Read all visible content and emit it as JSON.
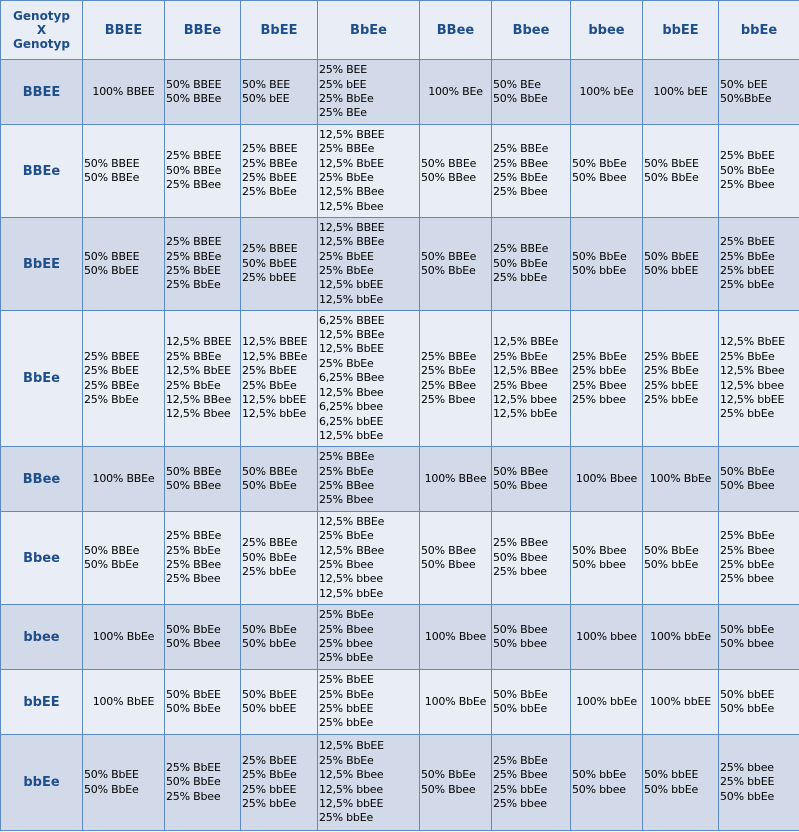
{
  "table": {
    "corner": [
      "Genotyp",
      "X",
      "Genotyp"
    ],
    "header": [
      "BBEE",
      "BBEe",
      "BbEE",
      "BbEe",
      "BBee",
      "Bbee",
      "bbee",
      "bbEE",
      "bbEe"
    ],
    "rows": [
      {
        "label": "BBEE",
        "cells": [
          [
            "100% BBEE"
          ],
          [
            "50% BBEE",
            "50% BBEe"
          ],
          [
            "50% BEE",
            "50% bEE"
          ],
          [
            "25% BEE",
            "25% bEE",
            "25% BbEe",
            "25% BEe"
          ],
          [
            "100% BEe"
          ],
          [
            "50% BEe",
            "50% BbEe"
          ],
          [
            "100% bEe"
          ],
          [
            "100% bEE"
          ],
          [
            "50% bEE",
            "50%BbEe"
          ]
        ]
      },
      {
        "label": "BBEe",
        "cells": [
          [
            "50% BBEE",
            "50% BBEe"
          ],
          [
            "25% BBEE",
            "50% BBEe",
            "25% BBee"
          ],
          [
            "25% BBEE",
            "25% BBEe",
            "25% BbEE",
            "25% BbEe"
          ],
          [
            "12,5% BBEE",
            "25% BBEe",
            "12,5% BbEE",
            "25% BbEe",
            "12,5% BBee",
            "12,5% Bbee"
          ],
          [
            "50% BBEe",
            "50% BBee"
          ],
          [
            "25% BBEe",
            "25% BBee",
            "25% BbEe",
            "25% Bbee"
          ],
          [
            "50% BbEe",
            "50% Bbee"
          ],
          [
            "50% BbEE",
            "50% BbEe"
          ],
          [
            "25% BbEE",
            "50% BbEe",
            "25% Bbee"
          ]
        ]
      },
      {
        "label": "BbEE",
        "cells": [
          [
            "50% BBEE",
            "50% BbEE"
          ],
          [
            "25% BBEE",
            "25% BBEe",
            "25% BbEE",
            "25% BbEe"
          ],
          [
            "25% BBEE",
            "50% BbEE",
            "25% bbEE"
          ],
          [
            "12,5% BBEE",
            "12,5% BBEe",
            "25% BbEE",
            "25% BbEe",
            "12,5% bbEE",
            "12,5% bbEe"
          ],
          [
            "50% BBEe",
            "50% BbEe"
          ],
          [
            "25% BBEe",
            "50% BbEe",
            "25% bbEe"
          ],
          [
            "50% BbEe",
            "50% bbEe"
          ],
          [
            "50% BbEE",
            "50% bbEE"
          ],
          [
            "25% BbEE",
            "25% BbEe",
            "25% bbEE",
            "25% bbEe"
          ]
        ]
      },
      {
        "label": "BbEe",
        "cells": [
          [
            "25% BBEE",
            "25% BbEE",
            "25% BBEe",
            "25% BbEe"
          ],
          [
            "12,5% BBEE",
            "25% BBEe",
            "12,5% BbEE",
            "25% BbEe",
            "12,5% BBee",
            "12,5% Bbee"
          ],
          [
            "12,5% BBEE",
            "12,5% BBEe",
            "25% BbEE",
            "25% BbEe",
            "12,5% bbEE",
            "12,5% bbEe"
          ],
          [
            "6,25% BBEE",
            "12,5% BBEe",
            "12,5% BbEE",
            "25% BbEe",
            "6,25% BBee",
            "12,5% Bbee",
            "6,25% bbee",
            "6,25% bbEE",
            "12,5% bbEe"
          ],
          [
            "25% BBEe",
            "25% BbEe",
            "25% BBee",
            "25% Bbee"
          ],
          [
            "12,5% BBEe",
            "25% BbEe",
            "12,5% BBee",
            "25% Bbee",
            "12,5% bbee",
            "12,5% bbEe"
          ],
          [
            "25% BbEe",
            "25% bbEe",
            "25% Bbee",
            "25% bbee"
          ],
          [
            "25% BbEE",
            "25% BbEe",
            "25% bbEE",
            "25% bbEe"
          ],
          [
            "12,5% BbEE",
            "25% BbEe",
            "12,5% Bbee",
            "12,5% bbee",
            "12,5% bbEE",
            "25% bbEe"
          ]
        ]
      },
      {
        "label": "BBee",
        "cells": [
          [
            "100% BBEe"
          ],
          [
            "50% BBEe",
            "50% BBee"
          ],
          [
            "50% BBEe",
            "50% BbEe"
          ],
          [
            "25% BBEe",
            "25% BbEe",
            "25% BBee",
            "25% Bbee"
          ],
          [
            "100% BBee"
          ],
          [
            "50% BBee",
            "50% Bbee"
          ],
          [
            "100% Bbee"
          ],
          [
            "100% BbEe"
          ],
          [
            "50% BbEe",
            "50% Bbee"
          ]
        ]
      },
      {
        "label": "Bbee",
        "cells": [
          [
            "50% BBEe",
            "50% BbEe"
          ],
          [
            "25% BBEe",
            "25% BbEe",
            "25% BBee",
            "25% Bbee"
          ],
          [
            "25% BBEe",
            "50% BbEe",
            "25% bbEe"
          ],
          [
            "12,5% BBEe",
            "25% BbEe",
            "12,5% BBee",
            "25% Bbee",
            "12,5% bbee",
            "12,5% bbEe"
          ],
          [
            "50% BBee",
            "50% Bbee"
          ],
          [
            "25% BBee",
            "50% Bbee",
            "25% bbee"
          ],
          [
            "50% Bbee",
            "50% bbee"
          ],
          [
            "50% BbEe",
            "50% bbEe"
          ],
          [
            "25% BbEe",
            "25% Bbee",
            "25% bbEe",
            "25% bbee"
          ]
        ]
      },
      {
        "label": "bbee",
        "cells": [
          [
            "100% BbEe"
          ],
          [
            "50% BbEe",
            "50% Bbee"
          ],
          [
            "50% BbEe",
            "50% bbEe"
          ],
          [
            "25% BbEe",
            "25% Bbee",
            "25% bbee",
            "25% bbEe"
          ],
          [
            "100% Bbee"
          ],
          [
            "50% Bbee",
            "50% bbee"
          ],
          [
            "100% bbee"
          ],
          [
            "100% bbEe"
          ],
          [
            "50% bbEe",
            "50% bbee"
          ]
        ]
      },
      {
        "label": "bbEE",
        "cells": [
          [
            "100% BbEE"
          ],
          [
            "50% BbEE",
            "50% BbEe"
          ],
          [
            "50% BbEE",
            "50% bbEE"
          ],
          [
            "25% BbEE",
            "25% BbEe",
            "25% bbEE",
            "25% bbEe"
          ],
          [
            "100% BbEe"
          ],
          [
            "50% BbEe",
            "50% bbEe"
          ],
          [
            "100% bbEe"
          ],
          [
            "100% bbEE"
          ],
          [
            "50% bbEE",
            "50% bbEe"
          ]
        ]
      },
      {
        "label": "bbEe",
        "cells": [
          [
            "50% BbEE",
            "50% BbEe"
          ],
          [
            "25% BbEE",
            "50% BbEe",
            "25% Bbee"
          ],
          [
            "25% BbEE",
            "25% BbEe",
            "25% bbEE",
            "25% bbEe"
          ],
          [
            "12,5% BbEE",
            "25% BbEe",
            "12,5% Bbee",
            "12,5% bbee",
            "12,5% bbEE",
            "25% bbEe"
          ],
          [
            "50% BbEe",
            "50% Bbee"
          ],
          [
            "25% BbEe",
            "25% Bbee",
            "25% bbEe",
            "25% bbee"
          ],
          [
            "50% bbEe",
            "50% bbee"
          ],
          [
            "50% bbEE",
            "50% bbEe"
          ],
          [
            "25% bbee",
            "25% bbEE",
            "50% bbEe"
          ]
        ]
      }
    ]
  }
}
